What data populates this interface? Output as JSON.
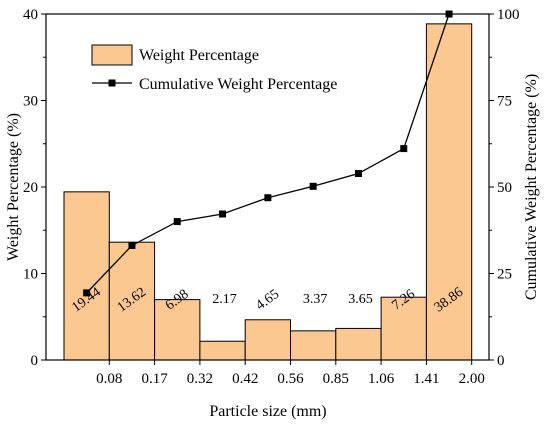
{
  "chart_data": {
    "type": "bar",
    "title": "",
    "xlabel": "Particle size (mm)",
    "ylabel": "Weight Percentage (%)",
    "y2label": "Cumulative Weight Percentage (%)",
    "ylim": [
      0,
      40
    ],
    "y2lim": [
      0,
      100
    ],
    "yticks": [
      "0",
      "10",
      "20",
      "30",
      "40"
    ],
    "y2ticks": [
      "0",
      "25",
      "50",
      "75",
      "100"
    ],
    "x_tick_labels": [
      "0.08",
      "0.17",
      "0.32",
      "0.42",
      "0.56",
      "0.85",
      "1.06",
      "1.41",
      "2.00"
    ],
    "categories": [
      "<0.08",
      "0.08-0.17",
      "0.17-0.32",
      "0.32-0.42",
      "0.42-0.56",
      "0.56-0.85",
      "0.85-1.06",
      "1.06-1.41",
      "1.41-2.00"
    ],
    "series": [
      {
        "name": "Weight Percentage",
        "type": "bar",
        "axis": "left",
        "values": [
          19.44,
          13.62,
          6.98,
          2.17,
          4.65,
          3.37,
          3.65,
          7.26,
          38.86
        ],
        "labels": [
          "19.44",
          "13.62",
          "6.98",
          "2.17",
          "4.65",
          "3.37",
          "3.65",
          "7.26",
          "38.86"
        ]
      },
      {
        "name": "Cumulative Weight Percentage",
        "type": "line",
        "axis": "right",
        "x": [
          "0.08",
          "0.17",
          "0.32",
          "0.42",
          "0.56",
          "0.85",
          "1.06",
          "1.41",
          "2.00"
        ],
        "values": [
          19.4,
          33.1,
          40.0,
          42.2,
          46.9,
          50.2,
          53.9,
          61.1,
          100.0
        ]
      }
    ],
    "legend": "top-left",
    "grid": false,
    "colors": {
      "bar_fill": "#fcc891",
      "bar_stroke": "#000000",
      "line": "#000000",
      "marker": "#000000"
    }
  }
}
